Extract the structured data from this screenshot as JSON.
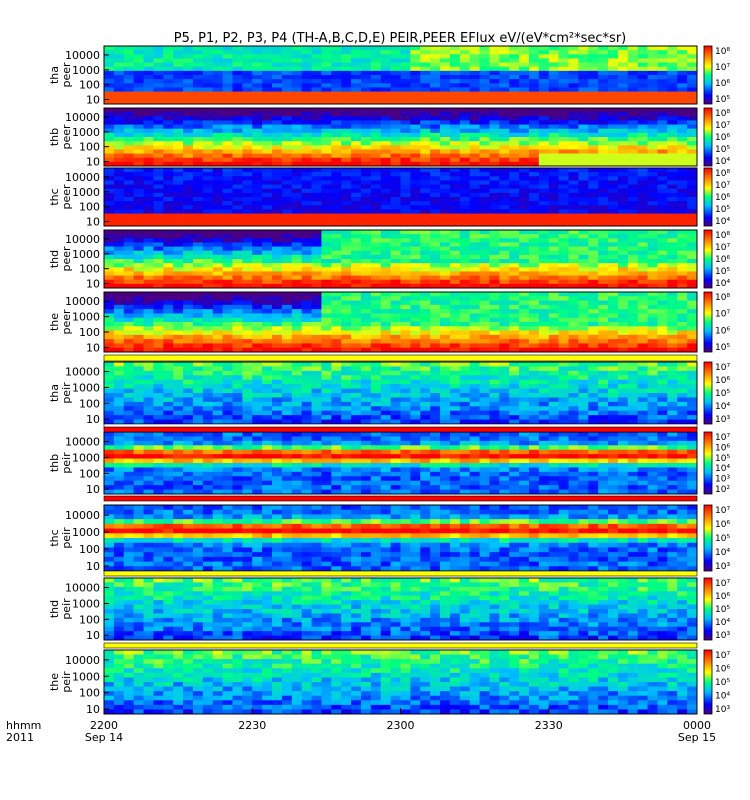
{
  "chart_data": {
    "type": "heatmap",
    "title": "P5, P1, P2, P3, P4 (TH-A,B,C,D,E) PEIR,PEER EFlux eV/(eV*cm²*sec*sr)",
    "x_axis": {
      "label_top": "hhmm",
      "label_bottom": "2011",
      "ticks": [
        {
          "label": "2200",
          "date": "Sep 14"
        },
        {
          "label": "2230",
          "date": ""
        },
        {
          "label": "2300",
          "date": ""
        },
        {
          "label": "2330",
          "date": ""
        },
        {
          "label": "0000",
          "date": "Sep 15"
        }
      ]
    },
    "panels": [
      {
        "probe": "tha",
        "instrument": "peer",
        "yticks": [
          "10000",
          "1000",
          "100",
          "10"
        ],
        "cbticks": [
          "10⁸",
          "10⁷",
          "10⁶",
          "10⁵"
        ],
        "scheme": "peer_a"
      },
      {
        "probe": "thb",
        "instrument": "peer",
        "yticks": [
          "10000",
          "1000",
          "100",
          "10"
        ],
        "cbticks": [
          "10⁸",
          "10⁷",
          "10⁶",
          "10⁵",
          "10⁴"
        ],
        "scheme": "peer_b"
      },
      {
        "probe": "thc",
        "instrument": "peer",
        "yticks": [
          "10000",
          "1000",
          "100",
          "10"
        ],
        "cbticks": [
          "10⁸",
          "10⁷",
          "10⁶",
          "10⁵",
          "10⁴"
        ],
        "scheme": "peer_c"
      },
      {
        "probe": "thd",
        "instrument": "peer",
        "yticks": [
          "10000",
          "1000",
          "100",
          "10"
        ],
        "cbticks": [
          "10⁸",
          "10⁷",
          "10⁶",
          "10⁵",
          "10⁴"
        ],
        "scheme": "peer_d"
      },
      {
        "probe": "the",
        "instrument": "peer",
        "yticks": [
          "10000",
          "1000",
          "100",
          "10"
        ],
        "cbticks": [
          "10⁸",
          "10⁷",
          "10⁶",
          "10⁵"
        ],
        "scheme": "peer_e"
      },
      {
        "probe": "tha",
        "instrument": "peir",
        "yticks": [
          "10000",
          "1000",
          "100",
          "10"
        ],
        "cbticks": [
          "10⁷",
          "10⁶",
          "10⁵",
          "10⁴",
          "10³"
        ],
        "scheme": "peir_low"
      },
      {
        "probe": "thb",
        "instrument": "peir",
        "yticks": [
          "10000",
          "1000",
          "100",
          "10"
        ],
        "cbticks": [
          "10⁷",
          "10⁶",
          "10⁵",
          "10⁴",
          "10³",
          "10²"
        ],
        "scheme": "peir_band"
      },
      {
        "probe": "thc",
        "instrument": "peir",
        "yticks": [
          "10000",
          "1000",
          "100",
          "10"
        ],
        "cbticks": [
          "10⁷",
          "10⁶",
          "10⁵",
          "10⁴",
          "10³"
        ],
        "scheme": "peir_band"
      },
      {
        "probe": "thd",
        "instrument": "peir",
        "yticks": [
          "10000",
          "1000",
          "100",
          "10"
        ],
        "cbticks": [
          "10⁷",
          "10⁶",
          "10⁵",
          "10⁴",
          "10³"
        ],
        "scheme": "peir_low"
      },
      {
        "probe": "the",
        "instrument": "peir",
        "yticks": [
          "10000",
          "1000",
          "100",
          "10"
        ],
        "cbticks": [
          "10⁷",
          "10⁶",
          "10⁵",
          "10⁴",
          "10³"
        ],
        "scheme": "peir_low"
      }
    ]
  }
}
